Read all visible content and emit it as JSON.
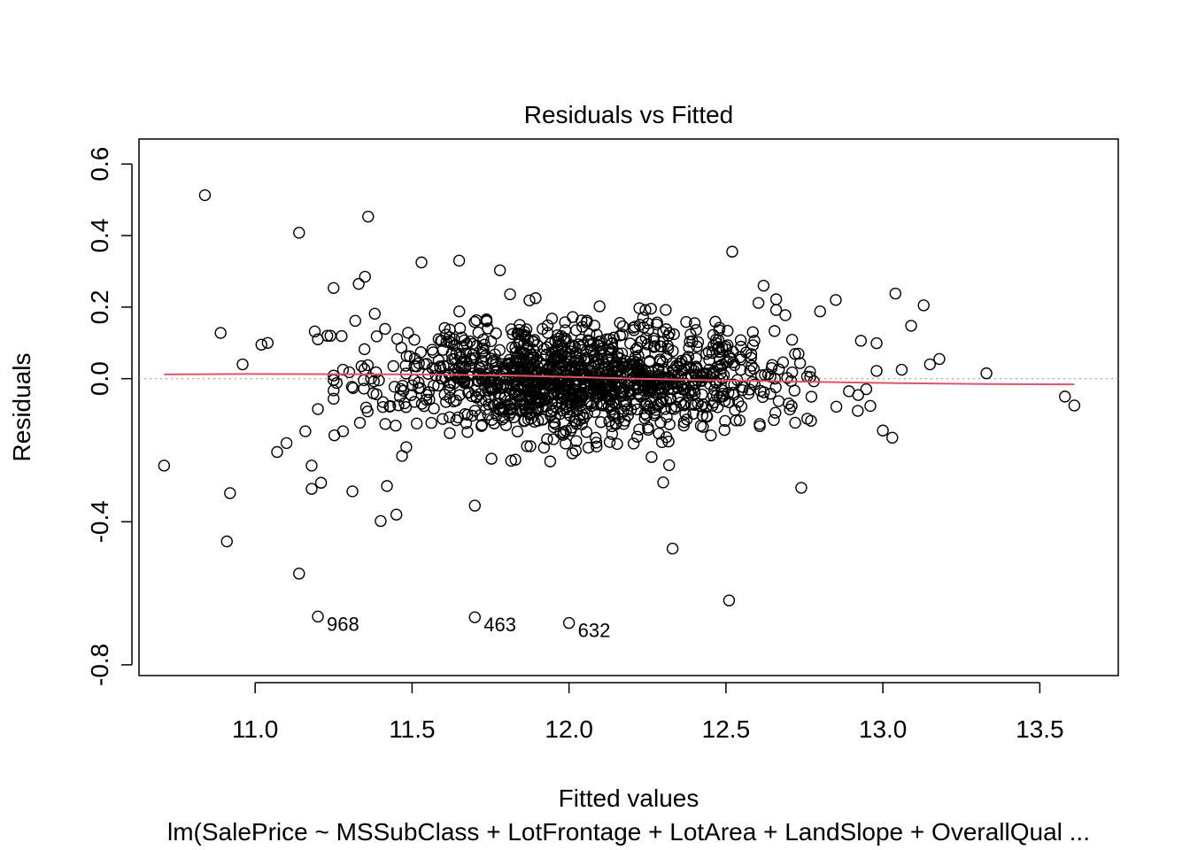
{
  "chart_data": {
    "type": "scatter",
    "title": "Residuals vs Fitted",
    "xlabel": "Fitted values",
    "ylabel": "Residuals",
    "subtitle": "lm(SalePrice ~ MSSubClass + LotFrontage + LotArea + LandSlope + OverallQual ...",
    "xlim": [
      10.63,
      13.75
    ],
    "ylim": [
      -0.83,
      0.67
    ],
    "xticks": [
      11.0,
      11.5,
      12.0,
      12.5,
      13.0,
      13.5
    ],
    "xtick_labels": [
      "11.0",
      "11.5",
      "12.0",
      "12.5",
      "13.0",
      "13.5"
    ],
    "yticks": [
      -0.8,
      -0.4,
      0.0,
      0.2,
      0.4,
      0.6
    ],
    "ytick_labels": [
      "-0.8",
      "-0.4",
      "0.0",
      "0.2",
      "0.4",
      "0.6"
    ],
    "reference_line_y": 0,
    "smoother": {
      "color": "#DF536B",
      "x": [
        10.71,
        11.0,
        11.5,
        11.8,
        12.0,
        12.2,
        12.5,
        12.8,
        13.0,
        13.33,
        13.61
      ],
      "y": [
        0.012,
        0.013,
        0.012,
        0.009,
        0.005,
        0.0,
        -0.005,
        -0.009,
        -0.012,
        -0.015,
        -0.016
      ]
    },
    "labeled_points": [
      {
        "label": "968",
        "x": 11.2,
        "y": -0.665
      },
      {
        "label": "463",
        "x": 11.7,
        "y": -0.667
      },
      {
        "label": "632",
        "x": 12.0,
        "y": -0.683
      }
    ],
    "outliers": [
      [
        10.84,
        0.513
      ],
      [
        10.71,
        -0.243
      ],
      [
        10.89,
        0.128
      ],
      [
        10.91,
        -0.455
      ],
      [
        10.92,
        -0.32
      ],
      [
        10.96,
        0.04
      ],
      [
        11.02,
        0.095
      ],
      [
        11.04,
        0.1
      ],
      [
        11.07,
        -0.205
      ],
      [
        11.1,
        -0.18
      ],
      [
        11.14,
        0.408
      ],
      [
        11.14,
        -0.545
      ],
      [
        11.16,
        -0.147
      ],
      [
        11.18,
        -0.243
      ],
      [
        11.18,
        -0.308
      ],
      [
        11.19,
        0.132
      ],
      [
        11.2,
        0.11
      ],
      [
        11.2,
        -0.085
      ],
      [
        11.21,
        -0.291
      ],
      [
        11.23,
        0.12
      ],
      [
        11.24,
        0.12
      ],
      [
        11.26,
        -0.012
      ],
      [
        11.28,
        0.025
      ],
      [
        11.28,
        -0.147
      ],
      [
        11.3,
        0.018
      ],
      [
        11.31,
        -0.315
      ],
      [
        11.33,
        0.265
      ],
      [
        11.35,
        0.285
      ],
      [
        11.36,
        0.453
      ],
      [
        11.4,
        -0.398
      ],
      [
        11.42,
        -0.3
      ],
      [
        11.45,
        -0.38
      ],
      [
        11.53,
        0.325
      ],
      [
        11.65,
        0.33
      ],
      [
        11.7,
        -0.355
      ],
      [
        11.78,
        0.303
      ],
      [
        12.3,
        -0.29
      ],
      [
        12.33,
        -0.475
      ],
      [
        12.52,
        0.355
      ],
      [
        12.51,
        -0.62
      ],
      [
        12.62,
        0.26
      ],
      [
        12.66,
        0.222
      ],
      [
        12.66,
        0.192
      ],
      [
        12.74,
        -0.305
      ],
      [
        12.8,
        0.188
      ],
      [
        12.85,
        0.22
      ],
      [
        12.93,
        0.106
      ],
      [
        13.04,
        0.238
      ],
      [
        13.09,
        0.148
      ],
      [
        13.13,
        0.205
      ],
      [
        13.15,
        0.04
      ],
      [
        13.18,
        0.055
      ],
      [
        13.33,
        0.015
      ],
      [
        13.58,
        -0.05
      ],
      [
        13.61,
        -0.075
      ],
      [
        13.03,
        -0.165
      ],
      [
        13.0,
        -0.145
      ],
      [
        13.06,
        0.025
      ],
      [
        12.92,
        -0.09
      ]
    ],
    "cloud": {
      "count": 1320,
      "center_x": 12.05,
      "sd_x": 0.3,
      "sd_y": 0.08,
      "x_range": [
        11.25,
        12.98
      ],
      "y_range": [
        -0.3,
        0.3
      ]
    }
  }
}
